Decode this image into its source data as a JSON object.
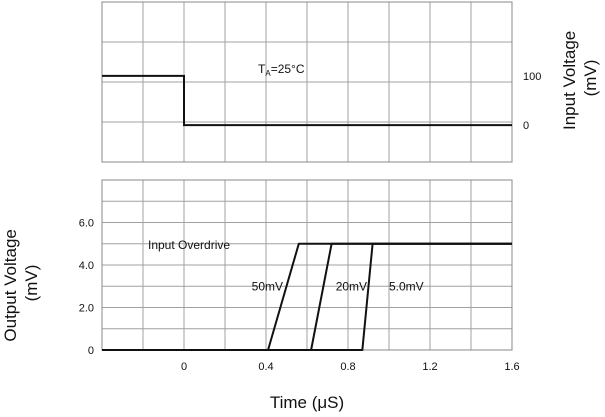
{
  "chart_data": [
    {
      "type": "line",
      "panel": "input",
      "ylabel_lines": [
        "Input Voltage",
        "(mV)"
      ],
      "condition_text": "T",
      "condition_sub": "A",
      "condition_rest": "=25°C",
      "xlim": [
        -0.4,
        1.6
      ],
      "ylim": [
        -75,
        250
      ],
      "ytick_labels": [
        {
          "value": 100,
          "label": "100"
        },
        {
          "value": 0,
          "label": "0"
        }
      ],
      "series": [
        {
          "x": [
            -0.4,
            0.0,
            0.0,
            1.6
          ],
          "y": [
            100,
            100,
            0,
            0
          ]
        }
      ],
      "grid": true
    },
    {
      "type": "line",
      "panel": "output",
      "ylabel_lines": [
        "Output Voltage",
        "(mV)"
      ],
      "xlabel": "Time (μS)",
      "xlim": [
        -0.4,
        1.6
      ],
      "ylim": [
        0,
        8.0
      ],
      "xticks": [
        0,
        0.4,
        0.8,
        1.2,
        1.6
      ],
      "xtick_labels": [
        "0",
        "0.4",
        "0.8",
        "1.2",
        "1.6"
      ],
      "yticks": [
        0,
        2.0,
        4.0,
        6.0
      ],
      "ytick_labels": [
        "0",
        "2.0",
        "4.0",
        "6.0"
      ],
      "legend_title": "Input Overdrive",
      "series": [
        {
          "name": "50mV",
          "x": [
            -0.4,
            0.41,
            0.56,
            1.6
          ],
          "y": [
            0,
            0,
            5.0,
            5.0
          ],
          "label_x": 0.33,
          "label_y": 3.0
        },
        {
          "name": "20mV",
          "x": [
            -0.4,
            0.62,
            0.72,
            1.6
          ],
          "y": [
            0,
            0,
            5.0,
            5.0
          ],
          "label_x": 0.74,
          "label_y": 3.0
        },
        {
          "name": "5.0mV",
          "x": [
            -0.4,
            0.87,
            0.92,
            1.6
          ],
          "y": [
            0,
            0,
            5.0,
            5.0
          ],
          "label_x": 1.0,
          "label_y": 3.0
        }
      ],
      "grid": true
    }
  ]
}
